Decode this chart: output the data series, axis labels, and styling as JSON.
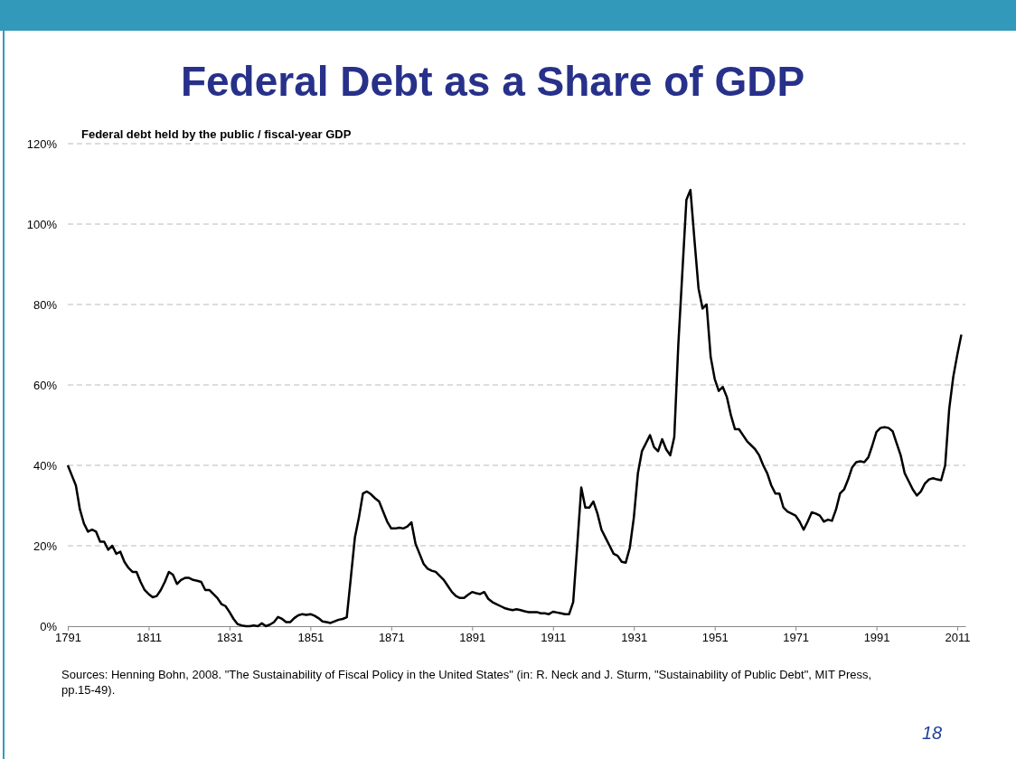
{
  "chart_data": {
    "type": "line",
    "title": "Federal Debt as a Share of GDP",
    "ylabel": "Federal debt held by the public / fiscal-year GDP",
    "x": [
      1791,
      1792,
      1793,
      1794,
      1795,
      1796,
      1797,
      1798,
      1799,
      1800,
      1801,
      1802,
      1803,
      1804,
      1805,
      1806,
      1807,
      1808,
      1809,
      1810,
      1811,
      1812,
      1813,
      1814,
      1815,
      1816,
      1817,
      1818,
      1819,
      1820,
      1821,
      1822,
      1823,
      1824,
      1825,
      1826,
      1827,
      1828,
      1829,
      1830,
      1831,
      1832,
      1833,
      1834,
      1835,
      1836,
      1837,
      1838,
      1839,
      1840,
      1841,
      1842,
      1843,
      1844,
      1845,
      1846,
      1847,
      1848,
      1849,
      1850,
      1851,
      1852,
      1853,
      1854,
      1855,
      1856,
      1857,
      1858,
      1859,
      1860,
      1861,
      1862,
      1863,
      1864,
      1865,
      1866,
      1867,
      1868,
      1869,
      1870,
      1871,
      1872,
      1873,
      1874,
      1875,
      1876,
      1877,
      1878,
      1879,
      1880,
      1881,
      1882,
      1883,
      1884,
      1885,
      1886,
      1887,
      1888,
      1889,
      1890,
      1891,
      1892,
      1893,
      1894,
      1895,
      1896,
      1897,
      1898,
      1899,
      1900,
      1901,
      1902,
      1903,
      1904,
      1905,
      1906,
      1907,
      1908,
      1909,
      1910,
      1911,
      1912,
      1913,
      1914,
      1915,
      1916,
      1917,
      1918,
      1919,
      1920,
      1921,
      1922,
      1923,
      1924,
      1925,
      1926,
      1927,
      1928,
      1929,
      1930,
      1931,
      1932,
      1933,
      1934,
      1935,
      1936,
      1937,
      1938,
      1939,
      1940,
      1941,
      1942,
      1943,
      1944,
      1945,
      1946,
      1947,
      1948,
      1949,
      1950,
      1951,
      1952,
      1953,
      1954,
      1955,
      1956,
      1957,
      1958,
      1959,
      1960,
      1961,
      1962,
      1963,
      1964,
      1965,
      1966,
      1967,
      1968,
      1969,
      1970,
      1971,
      1972,
      1973,
      1974,
      1975,
      1976,
      1977,
      1978,
      1979,
      1980,
      1981,
      1982,
      1983,
      1984,
      1985,
      1986,
      1987,
      1988,
      1989,
      1990,
      1991,
      1992,
      1993,
      1994,
      1995,
      1996,
      1997,
      1998,
      1999,
      2000,
      2001,
      2002,
      2003,
      2004,
      2005,
      2006,
      2007,
      2008,
      2009,
      2010,
      2011,
      2012
    ],
    "series": [
      {
        "color": "#000000",
        "values": [
          40,
          37.5,
          35,
          29,
          25.5,
          23.5,
          24,
          23.5,
          21,
          21,
          19,
          20,
          18,
          18.5,
          16,
          14.5,
          13.5,
          13.5,
          11,
          9,
          8,
          7.2,
          7.5,
          9,
          11,
          13.5,
          12.8,
          10.5,
          11.5,
          12,
          12,
          11.5,
          11.3,
          11,
          9,
          9,
          8,
          7,
          5.5,
          5,
          3.5,
          1.8,
          0.5,
          0.2,
          0,
          0,
          0.2,
          0,
          0.7,
          0,
          0.4,
          1,
          2.3,
          1.8,
          1,
          1,
          2,
          2.7,
          3,
          2.8,
          3,
          2.6,
          2,
          1.2,
          1,
          0.8,
          1.2,
          1.6,
          1.8,
          2.2,
          12,
          22,
          27,
          33,
          33.5,
          32.8,
          31.8,
          31,
          28.5,
          26,
          24.3,
          24.3,
          24.5,
          24.3,
          24.8,
          25.8,
          20.5,
          18,
          15.5,
          14.3,
          13.8,
          13.5,
          12.5,
          11.5,
          10,
          8.5,
          7.5,
          7,
          7,
          7.8,
          8.5,
          8.2,
          8,
          8.5,
          6.8,
          6,
          5.5,
          5,
          4.5,
          4.2,
          4,
          4.2,
          4,
          3.7,
          3.5,
          3.5,
          3.5,
          3.2,
          3.2,
          3,
          3.6,
          3.4,
          3.2,
          3,
          3,
          6,
          20,
          34.5,
          29.5,
          29.5,
          31,
          28,
          24,
          22,
          20,
          18,
          17.5,
          16,
          15.8,
          19.5,
          27,
          38,
          43.5,
          45.5,
          47.5,
          44.5,
          43.5,
          46.5,
          44,
          42.5,
          47,
          70,
          88,
          106,
          108.5,
          96,
          84,
          79,
          80,
          67,
          61.5,
          58.5,
          59.5,
          57,
          52.5,
          49,
          49,
          47.5,
          46,
          45,
          44,
          42.5,
          40,
          38,
          35,
          33,
          33,
          29.5,
          28.5,
          28,
          27.5,
          26,
          24,
          26,
          28.3,
          28,
          27.5,
          26,
          26.5,
          26.2,
          29,
          33,
          34,
          36.5,
          39.5,
          40.8,
          41,
          40.8,
          42,
          45,
          48.3,
          49.3,
          49.5,
          49.3,
          48.5,
          45.5,
          42.5,
          38,
          36,
          34,
          32.5,
          33.5,
          35.5,
          36.5,
          36.8,
          36.5,
          36.3,
          40,
          54,
          62,
          67.5,
          72.5
        ]
      }
    ],
    "xlim": [
      1791,
      2013
    ],
    "xticks": [
      1791,
      1811,
      1831,
      1851,
      1871,
      1891,
      1911,
      1931,
      1951,
      1971,
      1991,
      2011
    ],
    "ylim": [
      0,
      120
    ],
    "yticks": [
      {
        "value": 0,
        "label": "0%"
      },
      {
        "value": 20,
        "label": "20%"
      },
      {
        "value": 40,
        "label": "40%"
      },
      {
        "value": 60,
        "label": "60%"
      },
      {
        "value": 80,
        "label": "80%"
      },
      {
        "value": 100,
        "label": "100%"
      },
      {
        "value": 120,
        "label": "120%"
      }
    ],
    "grid": "y",
    "line_style": "solid",
    "marker": "none",
    "annotations": [
      "Sources: Henning Bohn, 2008. \"The Sustainability of Fiscal Policy in the United States\" (in: R.  Neck and J. Sturm, \"Sustainability of Public Debt\", MIT Press, pp.15-49).",
      "18"
    ]
  }
}
